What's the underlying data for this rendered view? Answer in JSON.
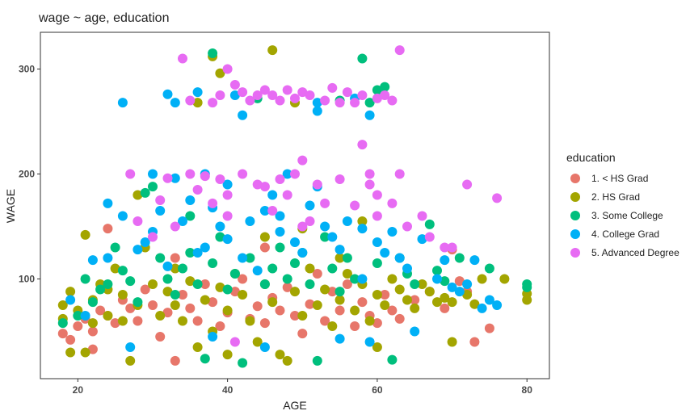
{
  "chart_data": {
    "type": "scatter",
    "title": "wage ~ age, education",
    "xlabel": "AGE",
    "ylabel": "WAGE",
    "xlim": [
      15,
      83
    ],
    "ylim": [
      5,
      335
    ],
    "x_ticks": [
      20,
      40,
      60,
      80
    ],
    "y_ticks": [
      100,
      200,
      300
    ],
    "legend": {
      "title": "education",
      "position": "right"
    },
    "series": [
      {
        "name": "1. < HS Grad",
        "color": "#E7766A",
        "points": [
          [
            18,
            48
          ],
          [
            19,
            42
          ],
          [
            20,
            55
          ],
          [
            21,
            62
          ],
          [
            22,
            50
          ],
          [
            23,
            70
          ],
          [
            24,
            148
          ],
          [
            24,
            65
          ],
          [
            25,
            58
          ],
          [
            26,
            80
          ],
          [
            27,
            72
          ],
          [
            28,
            60
          ],
          [
            29,
            90
          ],
          [
            30,
            75
          ],
          [
            31,
            45
          ],
          [
            32,
            68
          ],
          [
            33,
            22
          ],
          [
            34,
            85
          ],
          [
            35,
            72
          ],
          [
            36,
            60
          ],
          [
            37,
            95
          ],
          [
            38,
            78
          ],
          [
            39,
            55
          ],
          [
            40,
            68
          ],
          [
            41,
            88
          ],
          [
            42,
            100
          ],
          [
            43,
            62
          ],
          [
            44,
            74
          ],
          [
            45,
            58
          ],
          [
            46,
            82
          ],
          [
            47,
            70
          ],
          [
            48,
            92
          ],
          [
            49,
            65
          ],
          [
            50,
            48
          ],
          [
            51,
            76
          ],
          [
            52,
            105
          ],
          [
            53,
            60
          ],
          [
            54,
            88
          ],
          [
            55,
            70
          ],
          [
            56,
            95
          ],
          [
            57,
            55
          ],
          [
            58,
            78
          ],
          [
            59,
            65
          ],
          [
            60,
            58
          ],
          [
            61,
            85
          ],
          [
            62,
            70
          ],
          [
            63,
            62
          ],
          [
            65,
            80
          ],
          [
            67,
            88
          ],
          [
            69,
            72
          ],
          [
            70,
            128
          ],
          [
            71,
            98
          ],
          [
            72,
            88
          ],
          [
            73,
            40
          ],
          [
            75,
            53
          ],
          [
            22,
            33
          ],
          [
            33,
            120
          ],
          [
            45,
            130
          ]
        ]
      },
      {
        "name": "2. HS Grad",
        "color": "#A3A500",
        "points": [
          [
            18,
            75
          ],
          [
            18,
            62
          ],
          [
            19,
            30
          ],
          [
            19,
            88
          ],
          [
            20,
            70
          ],
          [
            21,
            142
          ],
          [
            21,
            30
          ],
          [
            22,
            80
          ],
          [
            22,
            58
          ],
          [
            23,
            95
          ],
          [
            24,
            65
          ],
          [
            25,
            110
          ],
          [
            26,
            85
          ],
          [
            26,
            60
          ],
          [
            27,
            22
          ],
          [
            28,
            75
          ],
          [
            29,
            130
          ],
          [
            30,
            95
          ],
          [
            31,
            65
          ],
          [
            32,
            88
          ],
          [
            33,
            110
          ],
          [
            33,
            75
          ],
          [
            34,
            60
          ],
          [
            35,
            98
          ],
          [
            36,
            35
          ],
          [
            37,
            80
          ],
          [
            38,
            312
          ],
          [
            38,
            50
          ],
          [
            39,
            296
          ],
          [
            39,
            92
          ],
          [
            40,
            70
          ],
          [
            40,
            28
          ],
          [
            41,
            105
          ],
          [
            42,
            85
          ],
          [
            43,
            60
          ],
          [
            44,
            40
          ],
          [
            45,
            95
          ],
          [
            46,
            318
          ],
          [
            46,
            78
          ],
          [
            47,
            28
          ],
          [
            48,
            22
          ],
          [
            49,
            268
          ],
          [
            49,
            88
          ],
          [
            50,
            65
          ],
          [
            51,
            110
          ],
          [
            52,
            75
          ],
          [
            53,
            90
          ],
          [
            54,
            55
          ],
          [
            55,
            80
          ],
          [
            56,
            105
          ],
          [
            57,
            70
          ],
          [
            58,
            95
          ],
          [
            59,
            60
          ],
          [
            60,
            35
          ],
          [
            60,
            85
          ],
          [
            61,
            75
          ],
          [
            62,
            100
          ],
          [
            63,
            90
          ],
          [
            64,
            80
          ],
          [
            65,
            72
          ],
          [
            66,
            95
          ],
          [
            67,
            88
          ],
          [
            68,
            78
          ],
          [
            69,
            82
          ],
          [
            70,
            40
          ],
          [
            70,
            78
          ],
          [
            72,
            85
          ],
          [
            73,
            76
          ],
          [
            74,
            100
          ],
          [
            77,
            100
          ],
          [
            80,
            86
          ],
          [
            80,
            80
          ],
          [
            36,
            268
          ],
          [
            24,
            90
          ],
          [
            28,
            180
          ],
          [
            45,
            140
          ],
          [
            55,
            120
          ],
          [
            50,
            148
          ],
          [
            58,
            155
          ]
        ]
      },
      {
        "name": "3. Some College",
        "color": "#00BF7D",
        "points": [
          [
            18,
            58
          ],
          [
            20,
            65
          ],
          [
            21,
            100
          ],
          [
            22,
            78
          ],
          [
            23,
            90
          ],
          [
            24,
            95
          ],
          [
            25,
            130
          ],
          [
            26,
            108
          ],
          [
            27,
            98
          ],
          [
            28,
            78
          ],
          [
            29,
            182
          ],
          [
            30,
            188
          ],
          [
            31,
            120
          ],
          [
            32,
            100
          ],
          [
            33,
            85
          ],
          [
            34,
            110
          ],
          [
            35,
            125
          ],
          [
            36,
            95
          ],
          [
            37,
            24
          ],
          [
            38,
            315
          ],
          [
            38,
            115
          ],
          [
            39,
            140
          ],
          [
            40,
            90
          ],
          [
            41,
            105
          ],
          [
            42,
            20
          ],
          [
            43,
            120
          ],
          [
            44,
            272
          ],
          [
            45,
            95
          ],
          [
            46,
            110
          ],
          [
            47,
            130
          ],
          [
            48,
            100
          ],
          [
            49,
            115
          ],
          [
            50,
            125
          ],
          [
            51,
            95
          ],
          [
            52,
            22
          ],
          [
            53,
            140
          ],
          [
            54,
            110
          ],
          [
            55,
            270
          ],
          [
            56,
            120
          ],
          [
            57,
            100
          ],
          [
            58,
            310
          ],
          [
            59,
            268
          ],
          [
            60,
            280
          ],
          [
            60,
            115
          ],
          [
            61,
            283
          ],
          [
            62,
            23
          ],
          [
            63,
            120
          ],
          [
            64,
            105
          ],
          [
            65,
            95
          ],
          [
            67,
            152
          ],
          [
            68,
            108
          ],
          [
            69,
            98
          ],
          [
            71,
            120
          ],
          [
            75,
            110
          ],
          [
            80,
            92
          ],
          [
            80,
            95
          ],
          [
            55,
            88
          ],
          [
            35,
            160
          ]
        ]
      },
      {
        "name": "4. College Grad",
        "color": "#00B0F6",
        "points": [
          [
            19,
            80
          ],
          [
            21,
            65
          ],
          [
            22,
            118
          ],
          [
            24,
            172
          ],
          [
            24,
            120
          ],
          [
            26,
            268
          ],
          [
            26,
            160
          ],
          [
            27,
            35
          ],
          [
            28,
            128
          ],
          [
            29,
            135
          ],
          [
            30,
            200
          ],
          [
            30,
            145
          ],
          [
            31,
            165
          ],
          [
            32,
            276
          ],
          [
            32,
            112
          ],
          [
            33,
            268
          ],
          [
            33,
            196
          ],
          [
            34,
            155
          ],
          [
            35,
            175
          ],
          [
            36,
            278
          ],
          [
            36,
            125
          ],
          [
            37,
            200
          ],
          [
            38,
            168
          ],
          [
            38,
            45
          ],
          [
            39,
            150
          ],
          [
            40,
            138
          ],
          [
            40,
            190
          ],
          [
            41,
            275
          ],
          [
            42,
            256
          ],
          [
            42,
            120
          ],
          [
            43,
            155
          ],
          [
            44,
            108
          ],
          [
            45,
            165
          ],
          [
            45,
            35
          ],
          [
            46,
            180
          ],
          [
            47,
            145
          ],
          [
            48,
            200
          ],
          [
            49,
            135
          ],
          [
            50,
            125
          ],
          [
            51,
            170
          ],
          [
            52,
            188
          ],
          [
            52,
            268
          ],
          [
            53,
            150
          ],
          [
            54,
            140
          ],
          [
            55,
            128
          ],
          [
            55,
            43
          ],
          [
            56,
            155
          ],
          [
            57,
            272
          ],
          [
            58,
            100
          ],
          [
            58,
            148
          ],
          [
            59,
            256
          ],
          [
            59,
            40
          ],
          [
            60,
            135
          ],
          [
            61,
            125
          ],
          [
            62,
            145
          ],
          [
            63,
            120
          ],
          [
            64,
            110
          ],
          [
            65,
            50
          ],
          [
            66,
            138
          ],
          [
            68,
            100
          ],
          [
            69,
            118
          ],
          [
            70,
            92
          ],
          [
            71,
            88
          ],
          [
            72,
            95
          ],
          [
            73,
            118
          ],
          [
            74,
            72
          ],
          [
            75,
            80
          ],
          [
            76,
            75
          ],
          [
            52,
            260
          ],
          [
            47,
            160
          ],
          [
            37,
            130
          ]
        ]
      },
      {
        "name": "5. Advanced Degree",
        "color": "#E76BF3",
        "points": [
          [
            27,
            200
          ],
          [
            28,
            155
          ],
          [
            30,
            140
          ],
          [
            31,
            175
          ],
          [
            32,
            196
          ],
          [
            33,
            150
          ],
          [
            34,
            310
          ],
          [
            35,
            270
          ],
          [
            35,
            200
          ],
          [
            36,
            185
          ],
          [
            37,
            198
          ],
          [
            38,
            268
          ],
          [
            38,
            172
          ],
          [
            39,
            275
          ],
          [
            39,
            195
          ],
          [
            40,
            300
          ],
          [
            40,
            160
          ],
          [
            41,
            285
          ],
          [
            41,
            40
          ],
          [
            42,
            278
          ],
          [
            42,
            200
          ],
          [
            43,
            270
          ],
          [
            44,
            190
          ],
          [
            44,
            275
          ],
          [
            45,
            280
          ],
          [
            45,
            188
          ],
          [
            46,
            275
          ],
          [
            46,
            165
          ],
          [
            47,
            270
          ],
          [
            47,
            195
          ],
          [
            48,
            280
          ],
          [
            48,
            180
          ],
          [
            49,
            272
          ],
          [
            49,
            200
          ],
          [
            50,
            213
          ],
          [
            50,
            278
          ],
          [
            51,
            275
          ],
          [
            51,
            155
          ],
          [
            52,
            190
          ],
          [
            53,
            270
          ],
          [
            53,
            172
          ],
          [
            54,
            282
          ],
          [
            55,
            268
          ],
          [
            55,
            195
          ],
          [
            56,
            278
          ],
          [
            57,
            268
          ],
          [
            57,
            170
          ],
          [
            58,
            228
          ],
          [
            58,
            275
          ],
          [
            59,
            200
          ],
          [
            59,
            190
          ],
          [
            60,
            272
          ],
          [
            60,
            180
          ],
          [
            61,
            275
          ],
          [
            62,
            172
          ],
          [
            62,
            270
          ],
          [
            63,
            318
          ],
          [
            63,
            200
          ],
          [
            64,
            150
          ],
          [
            66,
            160
          ],
          [
            67,
            140
          ],
          [
            69,
            130
          ],
          [
            70,
            130
          ],
          [
            72,
            190
          ],
          [
            76,
            177
          ],
          [
            60,
            160
          ],
          [
            50,
            150
          ],
          [
            40,
            180
          ]
        ]
      }
    ]
  }
}
